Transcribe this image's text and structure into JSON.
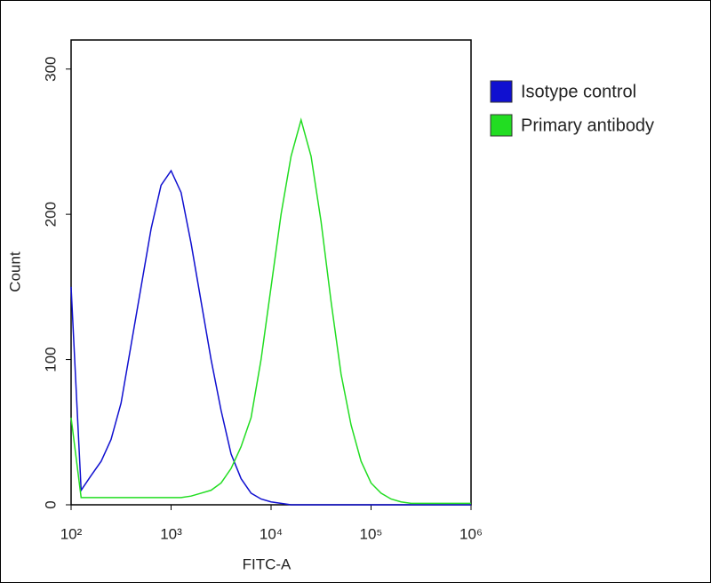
{
  "chart_data": {
    "type": "line",
    "x_label": "FITC-A",
    "y_label": "Count",
    "x": [
      100,
      126,
      158,
      200,
      251,
      316,
      398,
      501,
      631,
      794,
      1000,
      1259,
      1585,
      1995,
      2512,
      3162,
      3981,
      5012,
      6310,
      7943,
      10000,
      12589,
      15849,
      19953,
      25119,
      31623,
      39811,
      50119,
      63096,
      79433,
      100000,
      125893,
      158489,
      199526,
      251189,
      316228,
      398107,
      501187,
      630957,
      794328,
      1000000
    ],
    "series": [
      {
        "name": "Isotype control",
        "color": "#1010d0",
        "values": [
          150,
          10,
          20,
          30,
          45,
          70,
          110,
          150,
          190,
          220,
          230,
          215,
          180,
          140,
          100,
          65,
          35,
          18,
          8,
          4,
          2,
          1,
          0,
          0,
          0,
          0,
          0,
          0,
          0,
          0,
          0,
          0,
          0,
          0,
          0,
          0,
          0,
          0,
          0,
          0,
          0
        ]
      },
      {
        "name": "Primary antibody",
        "color": "#22dd22",
        "values": [
          60,
          5,
          5,
          5,
          5,
          5,
          5,
          5,
          5,
          5,
          5,
          5,
          6,
          8,
          10,
          15,
          25,
          40,
          60,
          100,
          150,
          200,
          240,
          265,
          240,
          195,
          140,
          90,
          55,
          30,
          15,
          8,
          4,
          2,
          1,
          1,
          1,
          1,
          1,
          1,
          1
        ]
      }
    ],
    "xscale": "log",
    "xlim": [
      100,
      1000000
    ],
    "xticks": [
      {
        "value": 100,
        "label": "10²"
      },
      {
        "value": 1000,
        "label": "10³"
      },
      {
        "value": 10000,
        "label": "10⁴"
      },
      {
        "value": 100000,
        "label": "10⁵"
      },
      {
        "value": 1000000,
        "label": "10⁶"
      }
    ],
    "ylim": [
      0,
      320
    ],
    "yticks": [
      0,
      100,
      200,
      300
    ],
    "legend": "outside right"
  }
}
